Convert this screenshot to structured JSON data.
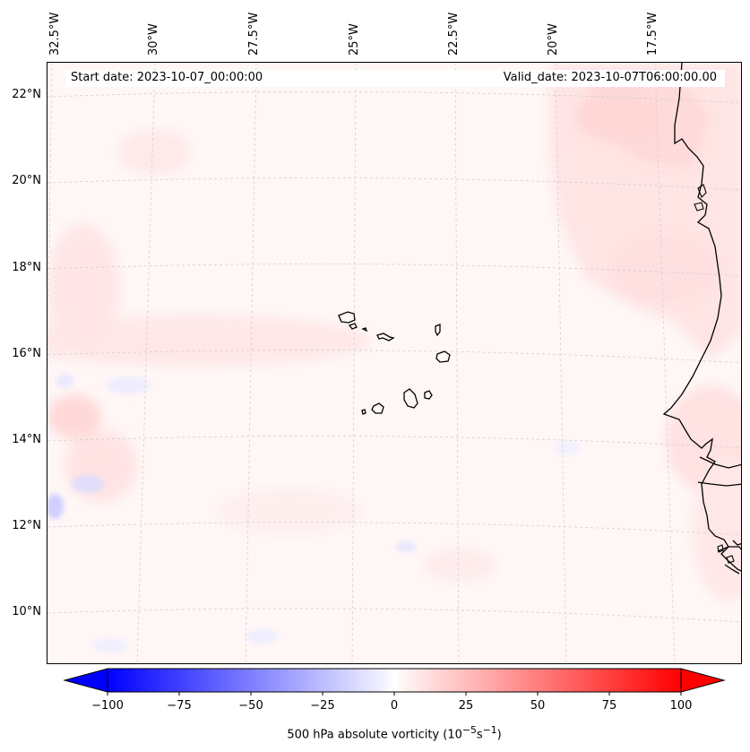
{
  "map": {
    "start_date": "Start date: 2023-10-07_00:00:00",
    "valid_date": "Valid_date: 2023-10-07T06:00:00.00",
    "lon_labels": [
      "32.5°W",
      "30°W",
      "27.5°W",
      "25°W",
      "22.5°W",
      "20°W",
      "17.5°W"
    ],
    "lat_labels": [
      "22°N",
      "20°N",
      "18°N",
      "16°N",
      "14°N",
      "12°N",
      "10°N"
    ],
    "field_colors": {
      "positive": "#ff0000",
      "negative": "#0000ff",
      "neutral": "#ffffff"
    }
  },
  "colorbar": {
    "ticks": [
      "−100",
      "−75",
      "−50",
      "−25",
      "0",
      "25",
      "50",
      "75",
      "100"
    ],
    "label": "500 hPa absolute vorticity (10",
    "label_exp1": "−5",
    "label_mid": "s",
    "label_exp2": "−1",
    "label_end": ")"
  }
}
